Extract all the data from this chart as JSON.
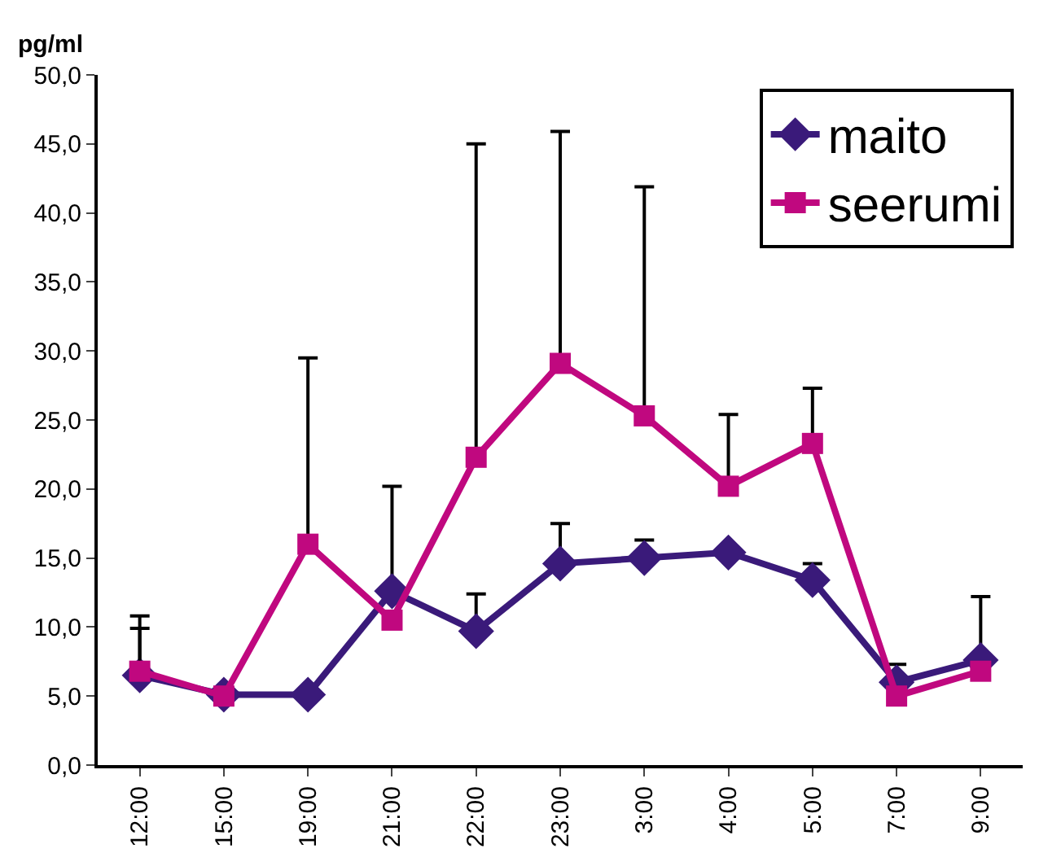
{
  "chart_data": {
    "type": "line",
    "ylabel": "pg/ml",
    "categories": [
      "12:00",
      "15:00",
      "19:00",
      "21:00",
      "22:00",
      "23:00",
      "3:00",
      "4:00",
      "5:00",
      "7:00",
      "9:00"
    ],
    "series": [
      {
        "name": "maito",
        "color": "#3a1a7a",
        "marker": "diamond",
        "values": [
          6.5,
          5.1,
          5.1,
          12.6,
          9.7,
          14.6,
          15.0,
          15.4,
          13.4,
          6.0,
          7.6
        ],
        "errors": [
          [
            6.5,
            10.8
          ],
          null,
          null,
          [
            12.6,
            20.2
          ],
          [
            9.7,
            12.4
          ],
          [
            14.6,
            17.5
          ],
          [
            15.0,
            16.3
          ],
          null,
          [
            13.4,
            14.6
          ],
          [
            6.0,
            7.3
          ],
          [
            7.6,
            12.2
          ]
        ]
      },
      {
        "name": "seerumi",
        "color": "#c0087f",
        "marker": "square",
        "values": [
          6.8,
          5.0,
          16.0,
          10.5,
          22.3,
          29.1,
          25.3,
          20.2,
          23.3,
          5.0,
          6.8
        ],
        "errors": [
          [
            6.8,
            9.9
          ],
          null,
          [
            16.0,
            29.5
          ],
          null,
          [
            22.3,
            45.0
          ],
          [
            29.1,
            45.9
          ],
          [
            25.3,
            41.9
          ],
          [
            20.2,
            25.4
          ],
          [
            23.3,
            27.3
          ],
          null,
          null
        ]
      }
    ],
    "ylim": [
      0,
      50
    ],
    "yticks": [
      {
        "value": 0,
        "label": "0,0"
      },
      {
        "value": 5,
        "label": "5,0"
      },
      {
        "value": 10,
        "label": "10,0"
      },
      {
        "value": 15,
        "label": "15,0"
      },
      {
        "value": 20,
        "label": "20,0"
      },
      {
        "value": 25,
        "label": "25,0"
      },
      {
        "value": 30,
        "label": "30,0"
      },
      {
        "value": 35,
        "label": "35,0"
      },
      {
        "value": 40,
        "label": "40,0"
      },
      {
        "value": 45,
        "label": "45,0"
      },
      {
        "value": 50,
        "label": "50,0"
      }
    ],
    "legend": "top right"
  }
}
